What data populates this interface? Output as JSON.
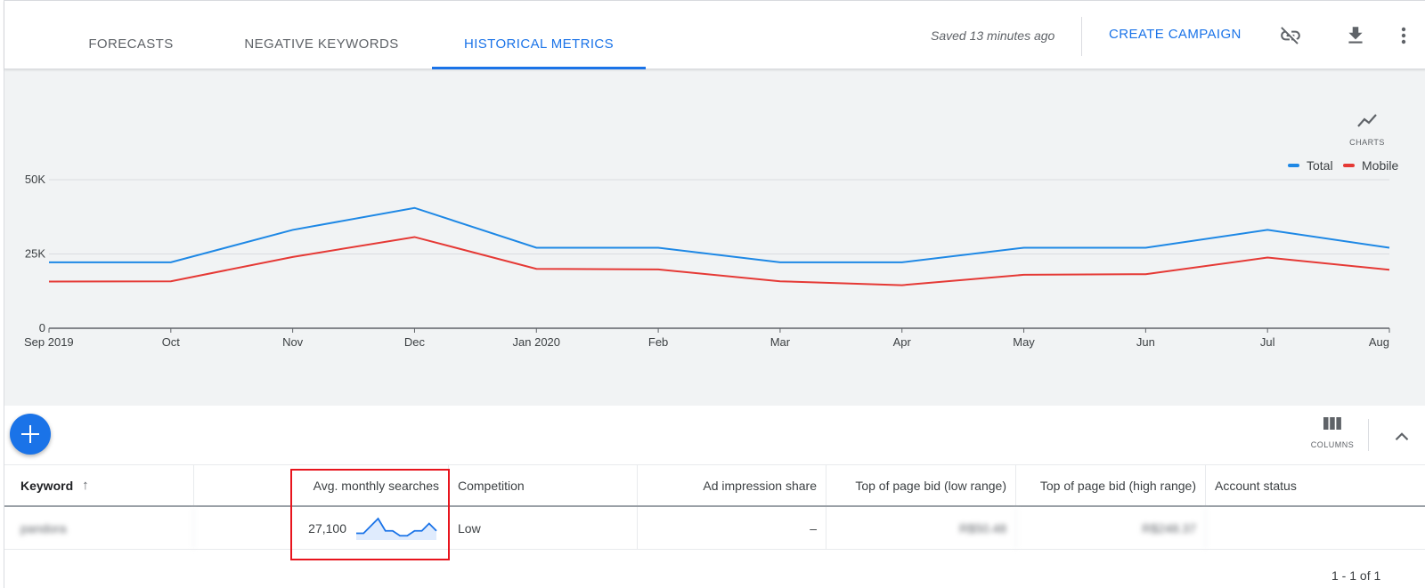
{
  "tabs": [
    {
      "label": "FORECASTS",
      "active": false
    },
    {
      "label": "NEGATIVE KEYWORDS",
      "active": false
    },
    {
      "label": "HISTORICAL METRICS",
      "active": true
    }
  ],
  "header": {
    "saved_text": "Saved 13 minutes ago",
    "create_campaign": "CREATE CAMPAIGN",
    "icons": [
      "link-off-icon",
      "download-icon",
      "more-vert-icon"
    ]
  },
  "chart_controls": {
    "charts_label": "CHARTS"
  },
  "chart_data": {
    "type": "line",
    "categories": [
      "Sep 2019",
      "Oct",
      "Nov",
      "Dec",
      "Jan 2020",
      "Feb",
      "Mar",
      "Apr",
      "May",
      "Jun",
      "Jul",
      "Aug"
    ],
    "series": [
      {
        "name": "Total",
        "color": "#1e88e5",
        "values": [
          22200,
          22200,
          33100,
          40500,
          27100,
          27100,
          22200,
          22200,
          27100,
          27100,
          33100,
          27100
        ]
      },
      {
        "name": "Mobile",
        "color": "#e53935",
        "values": [
          15700,
          15800,
          24000,
          30700,
          20000,
          19800,
          15800,
          14500,
          18000,
          18200,
          23800,
          19700
        ]
      }
    ],
    "y_ticks": [
      "0",
      "25K",
      "50K"
    ],
    "ylim": [
      0,
      50000
    ],
    "grid": true,
    "legend": "top-right"
  },
  "toolbar": {
    "columns_label": "COLUMNS"
  },
  "table": {
    "headers": {
      "keyword": "Keyword",
      "avg_monthly": "Avg. monthly searches",
      "competition": "Competition",
      "ad_impression": "Ad impression share",
      "bid_low": "Top of page bid (low range)",
      "bid_high": "Top of page bid (high range)",
      "account_status": "Account status"
    },
    "rows": [
      {
        "keyword": "pandora",
        "avg_monthly": "27,100",
        "trend": [
          2,
          2,
          5,
          8,
          3,
          3,
          1,
          1,
          3,
          3,
          6,
          3
        ],
        "competition": "Low",
        "ad_impression": "–",
        "bid_low": "R$50.48",
        "bid_high": "R$248.37",
        "account_status": ""
      }
    ]
  },
  "pagination": "1 - 1 of 1",
  "colors": {
    "accent": "#1a73e8",
    "chart_bg": "#f1f3f4",
    "highlight": "#e8141d"
  }
}
